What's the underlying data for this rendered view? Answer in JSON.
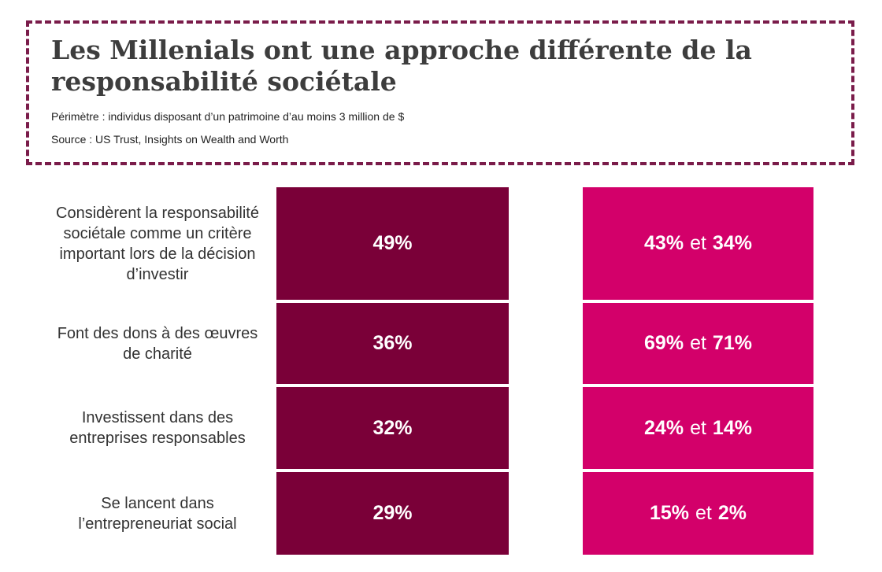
{
  "header": {
    "title": "Les Millenials ont une approche différente de la responsabilité sociétale",
    "perimeter": "Périmètre : individus disposant d’un patrimoine d’au moins 3 million de $",
    "source": "Source : US Trust, Insights on Wealth and Worth"
  },
  "colors": {
    "left_column": "#7a0038",
    "right_column": "#d3006a",
    "border": "#7a1c4a"
  },
  "chart_data": {
    "type": "table",
    "title": "Les Millenials ont une approche différente de la responsabilité sociétale",
    "rows": [
      {
        "label": "Considèrent la responsabilité sociétale comme un critère important lors de la décision d’investir",
        "left": "49%",
        "right_a": "43%",
        "right_sep": "et",
        "right_b": "34%"
      },
      {
        "label": "Font des dons à des œuvres de charité",
        "left": "36%",
        "right_a": "69%",
        "right_sep": "et",
        "right_b": "71%"
      },
      {
        "label": "Investissent dans des entreprises responsables",
        "left": "32%",
        "right_a": "24%",
        "right_sep": "et",
        "right_b": "14%"
      },
      {
        "label": "Se lancent dans l’entrepreneuriat social",
        "left": "29%",
        "right_a": "15%",
        "right_sep": "et",
        "right_b": "2%"
      }
    ]
  }
}
